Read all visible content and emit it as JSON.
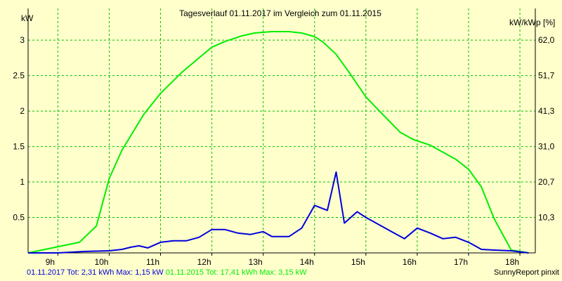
{
  "chart_data": {
    "type": "line",
    "title": "Tagesverlauf 01.11.2017 im Vergleich zum 01.11.2015",
    "ylabel_left": "kW",
    "ylabel_right": "kW/kWp [%]",
    "x_ticks": [
      "9h",
      "10h",
      "11h",
      "12h",
      "13h",
      "14h",
      "15h",
      "16h",
      "17h",
      "18h"
    ],
    "x_tick_hours": [
      9,
      10,
      11,
      12,
      13,
      14,
      15,
      16,
      17,
      18
    ],
    "xlim": [
      8.42,
      18.3
    ],
    "ylim": [
      0,
      3.15
    ],
    "y_ticks_left": [
      0.5,
      1,
      1.5,
      2,
      2.5,
      3
    ],
    "y_tick_labels_left": [
      "0.5",
      "1",
      "1.5",
      "2",
      "2.5",
      "3"
    ],
    "y_ticks_right": [
      0.5,
      1.0,
      1.5,
      2.0,
      2.5,
      3.0
    ],
    "y_tick_labels_right": [
      "10,3",
      "20,7",
      "31,0",
      "41,3",
      "51,7",
      "62,0"
    ],
    "grid": true,
    "series": [
      {
        "name": "01.11.2015",
        "color": "#00ee00",
        "x": [
          8.42,
          9.42,
          9.75,
          10.0,
          10.25,
          10.67,
          11.0,
          11.42,
          11.75,
          12.0,
          12.25,
          12.58,
          12.83,
          13.17,
          13.5,
          13.75,
          14.0,
          14.17,
          14.42,
          14.67,
          15.0,
          15.33,
          15.67,
          15.92,
          16.25,
          16.5,
          16.75,
          17.0,
          17.25,
          17.5,
          17.83,
          18.17
        ],
        "values": [
          0.0,
          0.15,
          0.38,
          1.05,
          1.45,
          1.95,
          2.25,
          2.55,
          2.75,
          2.9,
          2.98,
          3.06,
          3.1,
          3.12,
          3.12,
          3.1,
          3.05,
          2.97,
          2.8,
          2.55,
          2.2,
          1.95,
          1.7,
          1.6,
          1.52,
          1.42,
          1.32,
          1.18,
          0.93,
          0.48,
          0.04,
          0.0
        ]
      },
      {
        "name": "01.11.2017",
        "color": "#0000dd",
        "x": [
          8.42,
          9.0,
          9.5,
          10.0,
          10.25,
          10.42,
          10.58,
          10.75,
          11.0,
          11.25,
          11.5,
          11.75,
          12.0,
          12.25,
          12.5,
          12.75,
          13.0,
          13.17,
          13.5,
          13.75,
          14.0,
          14.25,
          14.42,
          14.58,
          14.83,
          15.0,
          15.25,
          15.5,
          15.75,
          16.0,
          16.25,
          16.5,
          16.75,
          17.0,
          17.25,
          17.5,
          17.83,
          18.17
        ],
        "values": [
          0.0,
          0.0,
          0.02,
          0.03,
          0.05,
          0.08,
          0.1,
          0.07,
          0.15,
          0.17,
          0.17,
          0.22,
          0.33,
          0.33,
          0.28,
          0.26,
          0.3,
          0.23,
          0.23,
          0.35,
          0.67,
          0.6,
          1.14,
          0.42,
          0.58,
          0.5,
          0.4,
          0.3,
          0.2,
          0.35,
          0.28,
          0.2,
          0.22,
          0.15,
          0.05,
          0.04,
          0.03,
          0.0
        ]
      }
    ]
  },
  "footer": {
    "legend_2017": "01.11.2017 Tot: 2,31 kWh Max: 1,15 kW",
    "legend_2015": "01.11.2015 Tot: 17,41 kWh Max: 3,15 kW",
    "credit": "SunnyReport pinxit"
  },
  "colors": {
    "background": "#ffffcc",
    "grid": "#00c000",
    "axis": "#000000",
    "series_2017": "#0000dd",
    "series_2015": "#00ee00"
  }
}
